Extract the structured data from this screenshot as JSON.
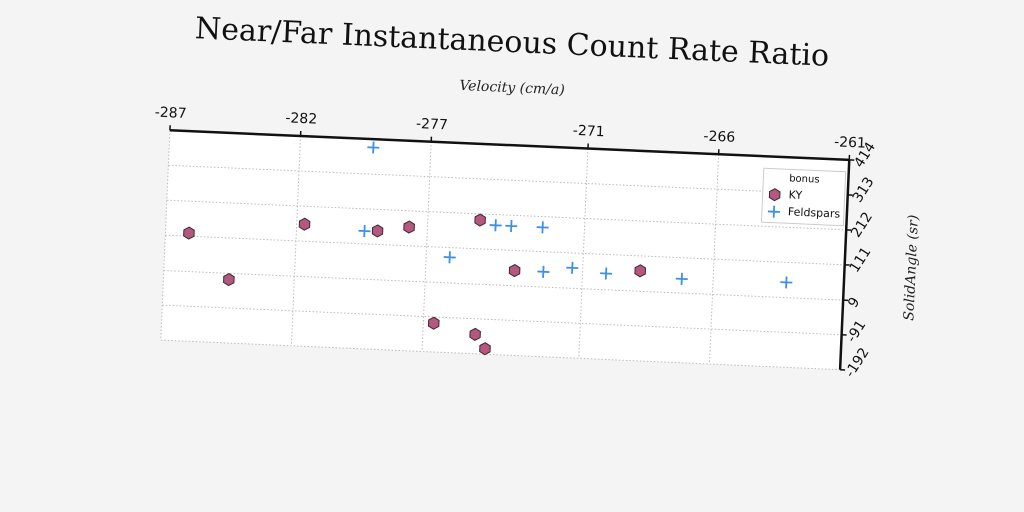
{
  "chart_data": {
    "type": "scatter",
    "title": "Near/Far Instantaneous Count Rate Ratio",
    "x_label": "Velocity (cm/a)",
    "y_label": "SolidAngle (sr)",
    "legend_title": "bonus",
    "legend": "upper right",
    "grid": true,
    "xlim": [
      -287,
      -261
    ],
    "xticks": [
      -287,
      -282,
      -277,
      -271,
      -266,
      -261
    ],
    "ylim": [
      -192,
      414
    ],
    "yticks": [
      -192,
      -91,
      9,
      111,
      212,
      313,
      414
    ],
    "series": [
      {
        "name": "KY",
        "color": "#b5577f",
        "marker": "hexagon",
        "x": [
          -286.1,
          -284.5,
          -281.7,
          -278.9,
          -277.7,
          -275.0,
          -276.6,
          -275.0,
          -274.6,
          -273.6,
          -268.8
        ],
        "values": [
          120,
          -9,
          160,
          150,
          165,
          194,
          -109,
          -136,
          -176,
          53,
          68
        ]
      },
      {
        "name": "Feldspars",
        "color": "#3d8fe8",
        "marker": "plus",
        "x": [
          -279.2,
          -279.4,
          -276.1,
          -274.4,
          -273.8,
          -272.6,
          -272.5,
          -271.4,
          -270.1,
          -267.2,
          -263.2
        ],
        "values": [
          390,
          148,
          83,
          181,
          181,
          181,
          53,
          68,
          56,
          50,
          53
        ]
      }
    ]
  }
}
